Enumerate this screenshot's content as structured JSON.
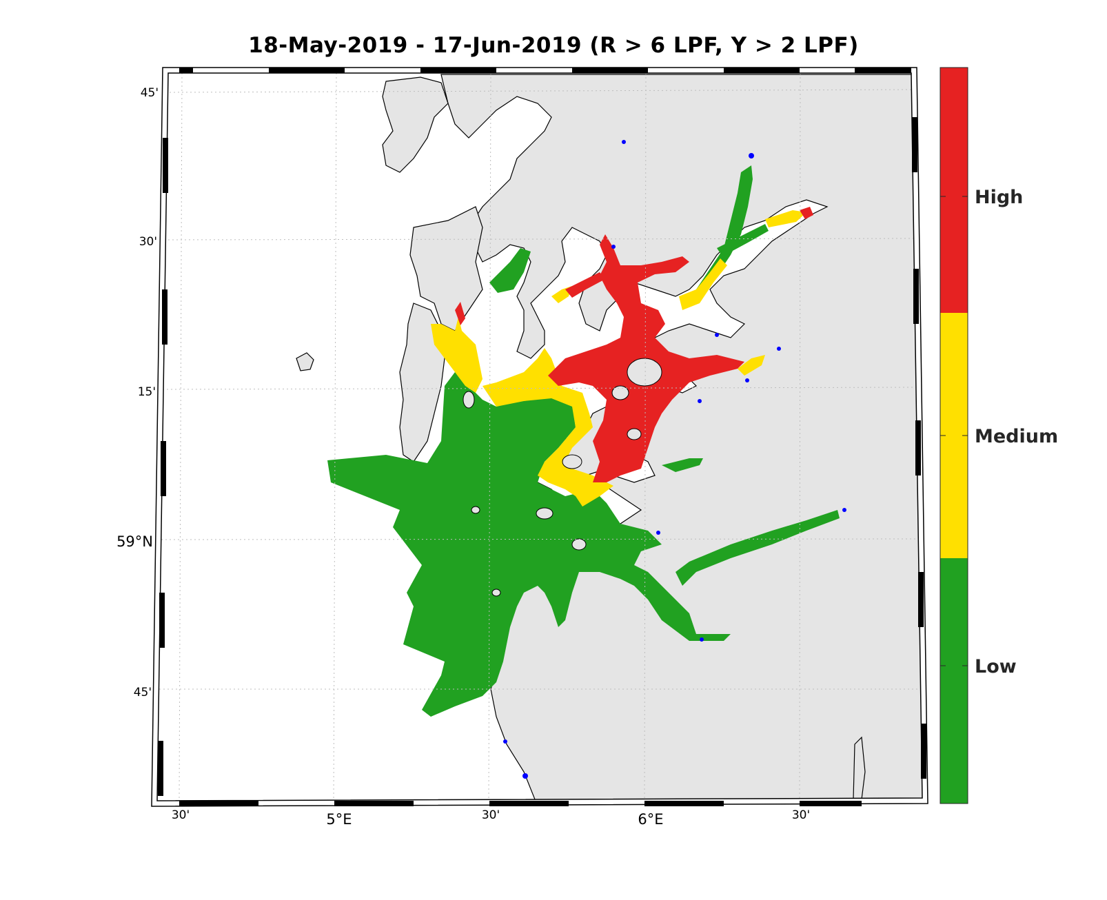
{
  "title": "18-May-2019  - 17-Jun-2019  (R > 6 LPF, Y > 2 LPF)",
  "axes": {
    "lat_ticks": [
      "45'",
      "30'",
      "15'",
      "59°N",
      "45'"
    ],
    "lon_ticks": [
      "30'",
      "5°E",
      "30'",
      "6°E",
      "30'"
    ]
  },
  "legend": {
    "levels": [
      {
        "label": "High",
        "color": "#e62222"
      },
      {
        "label": "Medium",
        "color": "#ffe000"
      },
      {
        "label": "Low",
        "color": "#21a121"
      }
    ]
  },
  "colors": {
    "land": "#e5e5e5",
    "sea": "#ffffff",
    "coastline": "#000000",
    "stations": "#0000ff"
  }
}
